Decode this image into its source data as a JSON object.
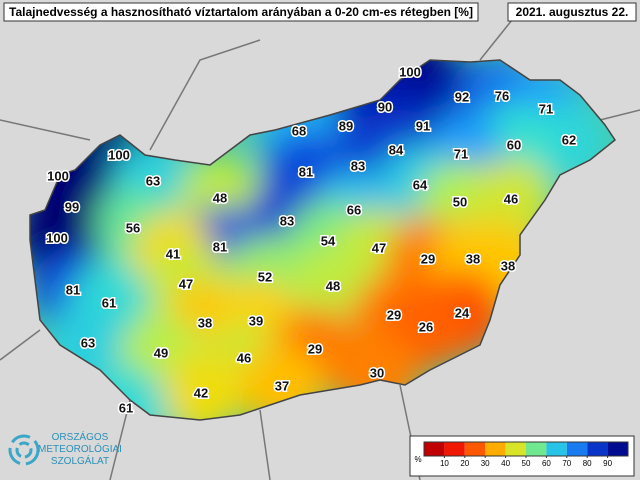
{
  "title": "Talajnedvesség a hasznosítható víztartalom arányában a 0-20 cm-es rétegben [%]",
  "date": "2021. augusztus 22.",
  "points": [
    100,
    92,
    76,
    71,
    90,
    89,
    91,
    68,
    62,
    60,
    71,
    84,
    83,
    81,
    100,
    100,
    63,
    64,
    48,
    99,
    50,
    46,
    66,
    83,
    56,
    100,
    54,
    81,
    47,
    41,
    29,
    38,
    38,
    52,
    47,
    48,
    81,
    61,
    29,
    24,
    38,
    39,
    26,
    63,
    49,
    46,
    29,
    30,
    37,
    42,
    61
  ],
  "legend": {
    "unit": "%",
    "ticks": [
      10,
      20,
      30,
      40,
      50,
      60,
      70,
      80,
      90
    ]
  },
  "logo": [
    "ORSZÁGOS",
    "METEOROLÓGIAI",
    "SZOLGÁLAT"
  ]
}
